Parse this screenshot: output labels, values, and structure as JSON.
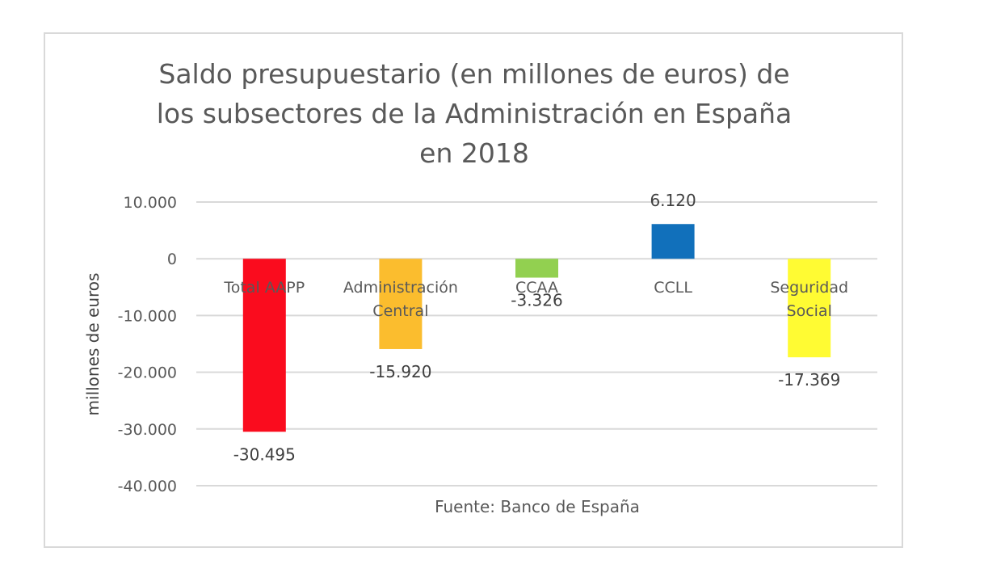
{
  "chart_data": {
    "type": "bar",
    "title": [
      "Saldo presupuestario (en millones de euros) de",
      "los subsectores de la Administración en España",
      "en 2018"
    ],
    "xlabel": "",
    "ylabel": "millones de euros",
    "ylim": [
      -40000,
      10000
    ],
    "yticks": [
      10000,
      0,
      -10000,
      -20000,
      -30000,
      -40000
    ],
    "ytick_labels": [
      "10.000",
      "0",
      "-10.000",
      "-20.000",
      "-30.000",
      "-40.000"
    ],
    "grid": true,
    "categories": [
      [
        "Total AAPP"
      ],
      [
        "Administración",
        "Central"
      ],
      [
        "CCAA"
      ],
      [
        "CCLL"
      ],
      [
        "Seguridad",
        "Social"
      ]
    ],
    "values": [
      -30495,
      -15920,
      -3326,
      6120,
      -17369
    ],
    "data_labels": [
      "-30.495",
      "-15.920",
      "-3.326",
      "6.120",
      "-17.369"
    ],
    "colors": [
      "#fa0c1e",
      "#fbbd2e",
      "#92d050",
      "#1170bb",
      "#fffb33"
    ],
    "annotation": "Fuente: Banco de España"
  }
}
